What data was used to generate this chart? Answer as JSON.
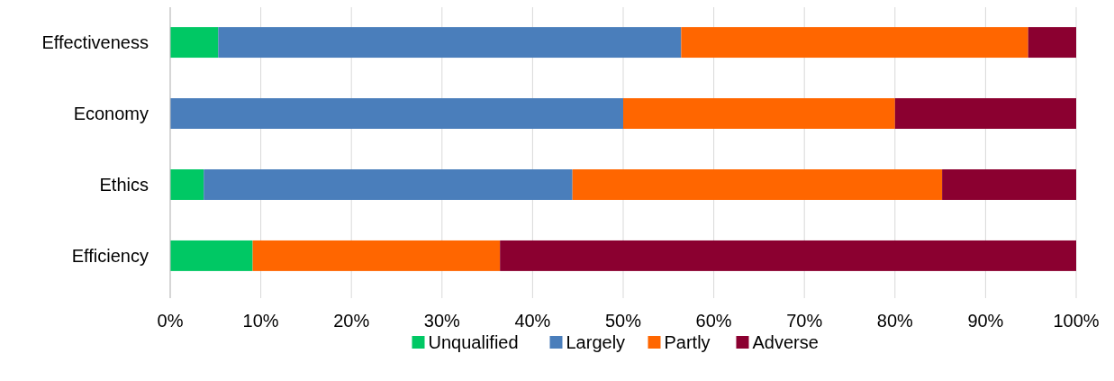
{
  "chart_data": {
    "type": "bar",
    "orientation": "horizontal",
    "stacked": true,
    "categories": [
      "Effectiveness",
      "Economy",
      "Ethics",
      "Efficiency"
    ],
    "series": [
      {
        "name": "Unqualified",
        "color": "#00c864",
        "values": [
          5.3,
          0,
          3.7,
          9.1
        ]
      },
      {
        "name": "Largely",
        "color": "#4a7ebb",
        "values": [
          51.1,
          50,
          40.7,
          0
        ]
      },
      {
        "name": "Partly",
        "color": "#ff6600",
        "values": [
          38.3,
          30,
          40.8,
          27.3
        ]
      },
      {
        "name": "Adverse",
        "color": "#8b0030",
        "values": [
          5.3,
          20,
          14.8,
          63.6
        ]
      }
    ],
    "xlim": [
      0,
      100
    ],
    "xticks": [
      {
        "value": 0,
        "label": "0%"
      },
      {
        "value": 10,
        "label": "10%"
      },
      {
        "value": 20,
        "label": "20%"
      },
      {
        "value": 30,
        "label": "30%"
      },
      {
        "value": 40,
        "label": "40%"
      },
      {
        "value": 50,
        "label": "50%"
      },
      {
        "value": 60,
        "label": "60%"
      },
      {
        "value": 70,
        "label": "70%"
      },
      {
        "value": 80,
        "label": "80%"
      },
      {
        "value": 90,
        "label": "90%"
      },
      {
        "value": 100,
        "label": "100%"
      }
    ],
    "grid": "x",
    "legend": "bottom"
  }
}
